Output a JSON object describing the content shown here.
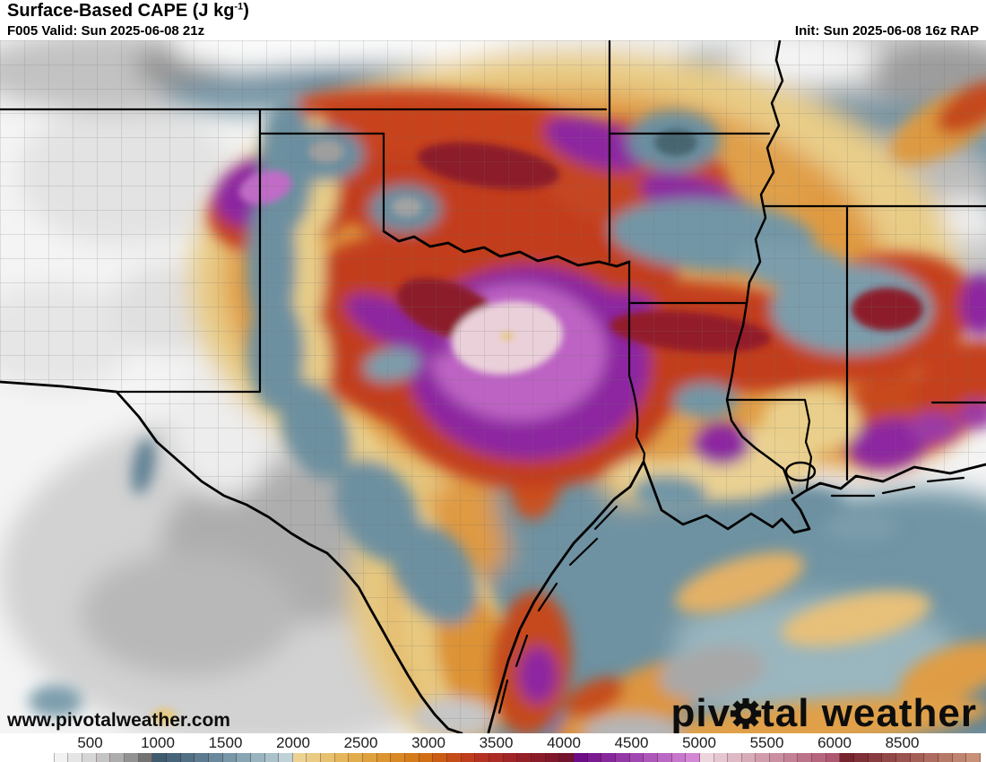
{
  "header": {
    "title_main": "Surface-Based CAPE (J kg",
    "title_sup": "-1",
    "title_end": ")",
    "subtitle": "F005 Valid: Sun 2025-06-08 21z",
    "init_label": "Init: Sun 2025-06-08 16z RAP"
  },
  "map": {
    "parameter": "Surface-Based CAPE",
    "units": "J kg-1",
    "model": "RAP",
    "watermark_url": "www.pivotalweather.com",
    "logo_part1": "piv",
    "logo_part2": "tal weather"
  },
  "colorbar": {
    "units": "J kg-1",
    "tick_labels": [
      "500",
      "1000",
      "1500",
      "2000",
      "2500",
      "3000",
      "3500",
      "4000",
      "4500",
      "5000",
      "5500",
      "6000",
      "8500"
    ],
    "tick_start_x": 100.5,
    "tick_spacing": 75.5,
    "cell_width": 15.67,
    "cells": [
      "#ffffff",
      "#f2f2f2",
      "#e5e5e5",
      "#d6d6d6",
      "#c4c4c4",
      "#adadad",
      "#929292",
      "#737373",
      "#3f5c6e",
      "#47657a",
      "#516f85",
      "#5d7b91",
      "#6a899c",
      "#7897a8",
      "#88a5b3",
      "#99b3bf",
      "#abc2cb",
      "#bed2d8",
      "#ecd394",
      "#e9cb83",
      "#e6c170",
      "#e4b75d",
      "#e1ac4b",
      "#dfa13d",
      "#dc9530",
      "#d98825",
      "#d57b1b",
      "#d16d14",
      "#cb5c13",
      "#c54b17",
      "#be3d1c",
      "#b53221",
      "#ab2b25",
      "#a02527",
      "#952028",
      "#8a1c2a",
      "#7f182b",
      "#74132d",
      "#6d0d87",
      "#7a1b92",
      "#87299d",
      "#9438a8",
      "#a147b2",
      "#ae57bb",
      "#bb67c4",
      "#c777cc",
      "#d288d4",
      "#edd5dd",
      "#e6c7d1",
      "#dfb9c5",
      "#d8abb9",
      "#d19dad",
      "#ca8fa1",
      "#c38195",
      "#bc7389",
      "#b5657d",
      "#ae5771",
      "#77242f",
      "#803037",
      "#893c3f",
      "#924847",
      "#9b544f",
      "#a46057",
      "#ad6c5f",
      "#b67867",
      "#bf846f",
      "#c89077"
    ]
  }
}
